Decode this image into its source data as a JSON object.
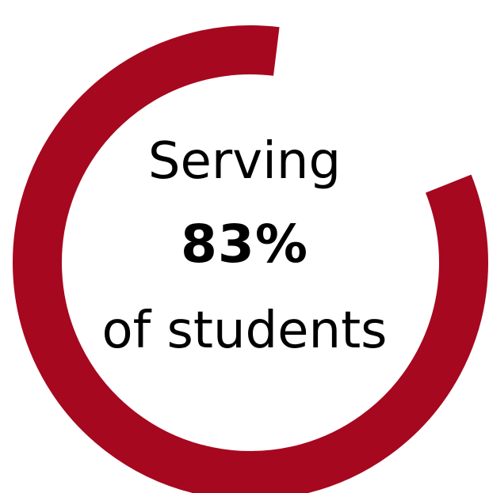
{
  "chart_data": {
    "type": "pie",
    "percent": 83,
    "color": "#A6081F",
    "track_color": "#FFFFFF",
    "text": {
      "line1": "Serving",
      "line2": "83%",
      "line3": "of students"
    }
  }
}
